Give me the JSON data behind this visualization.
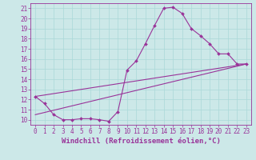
{
  "xlabel": "Windchill (Refroidissement éolien,°C)",
  "background_color": "#cce8e8",
  "line_color": "#993399",
  "grid_color": "#aad8d8",
  "spine_color": "#993399",
  "xlim": [
    -0.5,
    23.5
  ],
  "ylim": [
    9.5,
    21.5
  ],
  "xticks": [
    0,
    1,
    2,
    3,
    4,
    5,
    6,
    7,
    8,
    9,
    10,
    11,
    12,
    13,
    14,
    15,
    16,
    17,
    18,
    19,
    20,
    21,
    22,
    23
  ],
  "yticks": [
    10,
    11,
    12,
    13,
    14,
    15,
    16,
    17,
    18,
    19,
    20,
    21
  ],
  "line1_x": [
    0,
    1,
    2,
    3,
    4,
    5,
    6,
    7,
    8,
    9,
    10,
    11,
    12,
    13,
    14,
    15,
    16,
    17,
    18,
    19,
    20,
    21,
    22,
    23
  ],
  "line1_y": [
    12.3,
    11.6,
    10.5,
    10.0,
    10.0,
    10.1,
    10.1,
    10.0,
    9.85,
    10.8,
    14.9,
    15.8,
    17.5,
    19.3,
    21.0,
    21.1,
    20.5,
    19.0,
    18.3,
    17.5,
    16.5,
    16.5,
    15.5,
    15.5
  ],
  "line2_x": [
    0,
    23
  ],
  "line2_y": [
    12.3,
    15.5
  ],
  "line3_x": [
    0,
    23
  ],
  "line3_y": [
    10.5,
    15.5
  ],
  "tick_fontsize": 5.5,
  "label_fontsize": 6.5,
  "figwidth": 3.2,
  "figheight": 2.0,
  "dpi": 100
}
